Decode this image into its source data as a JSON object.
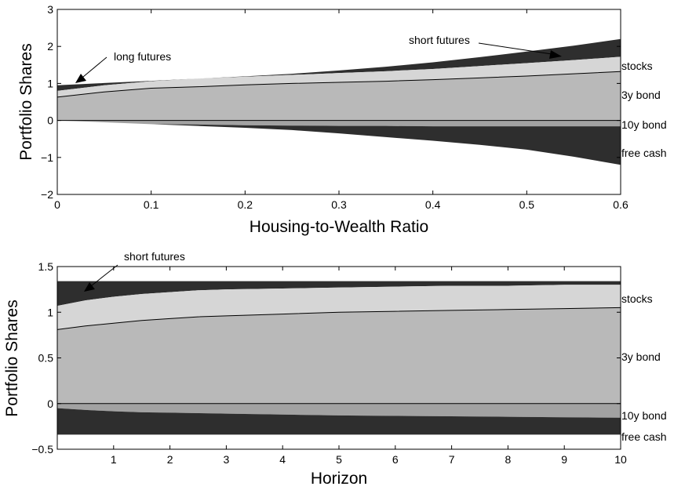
{
  "chart_data": [
    {
      "type": "area",
      "subtype": "stacked-area",
      "title": "",
      "xlabel": "Housing-to-Wealth Ratio",
      "ylabel": "Portfolio Shares",
      "xlim": [
        0,
        0.6
      ],
      "ylim": [
        -2,
        3
      ],
      "xticks": [
        "0",
        "0.1",
        "0.2",
        "0.3",
        "0.4",
        "0.5",
        "0.6"
      ],
      "yticks": [
        "−2",
        "−1",
        "0",
        "1",
        "2",
        "3"
      ],
      "x": [
        0,
        0.05,
        0.1,
        0.15,
        0.2,
        0.25,
        0.3,
        0.35,
        0.4,
        0.45,
        0.5,
        0.55,
        0.6
      ],
      "grid": false,
      "boundaries": {
        "y3_top": [
          0.63,
          0.77,
          0.87,
          0.91,
          0.96,
          1.0,
          1.03,
          1.06,
          1.1,
          1.15,
          1.2,
          1.26,
          1.32
        ],
        "stocks_top": [
          0.8,
          0.95,
          1.06,
          1.13,
          1.18,
          1.23,
          1.28,
          1.33,
          1.39,
          1.47,
          1.55,
          1.63,
          1.72
        ],
        "futures_top": [
          0.95,
          1.01,
          1.07,
          1.13,
          1.19,
          1.26,
          1.35,
          1.45,
          1.57,
          1.71,
          1.86,
          2.02,
          2.2
        ],
        "neg10_bottom": [
          0,
          -0.05,
          -0.1,
          -0.11,
          -0.13,
          -0.14,
          -0.15,
          -0.15,
          -0.16,
          -0.16,
          -0.16,
          -0.16,
          -0.16
        ],
        "cash_bottom": [
          0,
          -0.05,
          -0.1,
          -0.15,
          -0.2,
          -0.26,
          -0.35,
          -0.45,
          -0.55,
          -0.66,
          -0.79,
          -0.98,
          -1.2
        ]
      },
      "colors": {
        "dark": "#2e2e2e",
        "light": "#d6d6d6",
        "mid": "#b9b9b9",
        "gray10": "#a2a2a2"
      },
      "right_labels": [
        "stocks",
        "3y bond",
        "10y bond",
        "free cash"
      ],
      "annotations": [
        "long futures",
        "short futures"
      ]
    },
    {
      "type": "area",
      "subtype": "stacked-area",
      "title": "",
      "xlabel": "Horizon",
      "ylabel": "Portfolio Shares",
      "xlim": [
        0,
        10
      ],
      "ylim": [
        -0.5,
        1.5
      ],
      "xticks": [
        "1",
        "2",
        "3",
        "4",
        "5",
        "6",
        "7",
        "8",
        "9",
        "10"
      ],
      "yticks": [
        "−0.5",
        "0",
        "0.5",
        "1",
        "1.5"
      ],
      "x": [
        0,
        0.5,
        1,
        1.5,
        2,
        2.5,
        3,
        4,
        5,
        6,
        7,
        8,
        9,
        10
      ],
      "grid": false,
      "boundaries": {
        "y3_top": [
          0.81,
          0.85,
          0.88,
          0.91,
          0.93,
          0.95,
          0.96,
          0.98,
          1.0,
          1.01,
          1.02,
          1.03,
          1.04,
          1.05
        ],
        "stocks_top": [
          1.07,
          1.13,
          1.17,
          1.2,
          1.22,
          1.24,
          1.25,
          1.26,
          1.27,
          1.28,
          1.29,
          1.29,
          1.3,
          1.3
        ],
        "futures_top": [
          1.34,
          1.34,
          1.34,
          1.34,
          1.34,
          1.34,
          1.34,
          1.34,
          1.34,
          1.34,
          1.34,
          1.34,
          1.34,
          1.34
        ],
        "neg10_bottom": [
          -0.05,
          -0.07,
          -0.085,
          -0.095,
          -0.1,
          -0.105,
          -0.11,
          -0.12,
          -0.13,
          -0.135,
          -0.14,
          -0.145,
          -0.15,
          -0.155
        ],
        "cash_bottom": [
          -0.34,
          -0.34,
          -0.34,
          -0.34,
          -0.34,
          -0.34,
          -0.34,
          -0.34,
          -0.34,
          -0.34,
          -0.34,
          -0.34,
          -0.34,
          -0.34
        ]
      },
      "colors": {
        "dark": "#2e2e2e",
        "light": "#d6d6d6",
        "mid": "#b9b9b9",
        "gray10": "#a2a2a2"
      },
      "right_labels": [
        "stocks",
        "3y bond",
        "10y bond",
        "free cash"
      ],
      "annotations": [
        "short futures"
      ]
    }
  ]
}
